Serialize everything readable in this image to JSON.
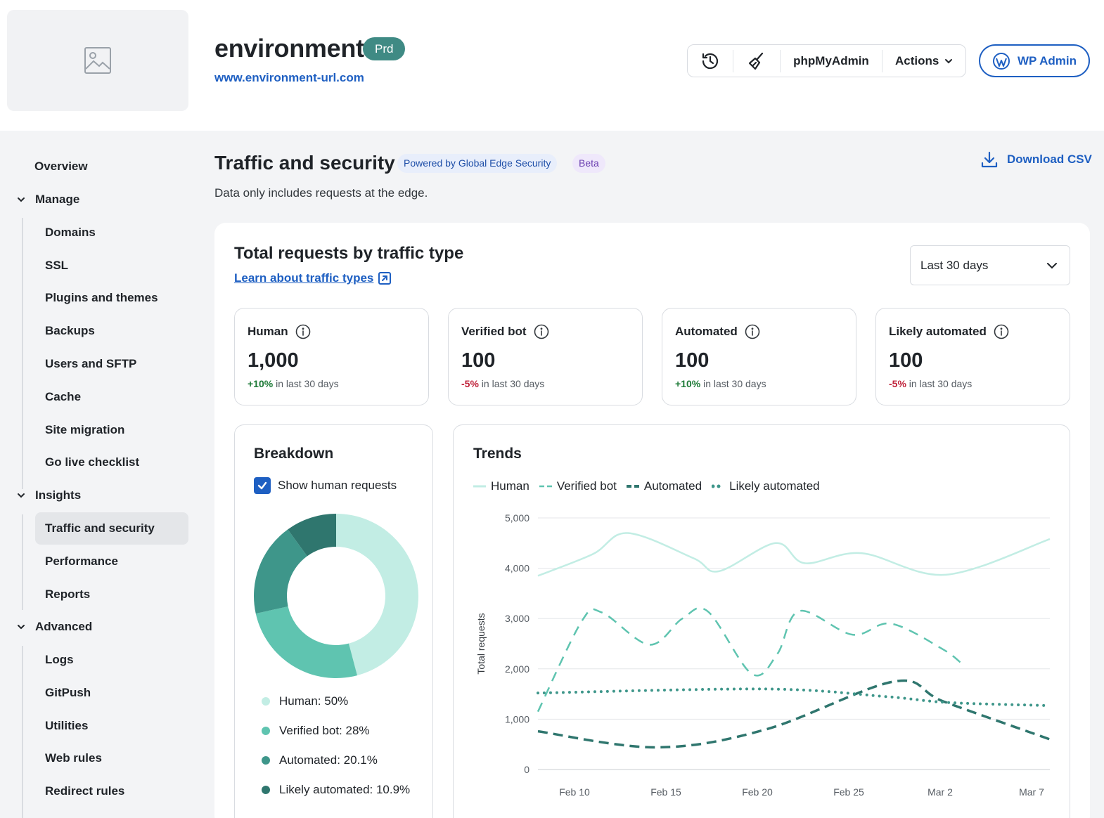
{
  "header": {
    "env_name": "environment",
    "env_badge": "Prd",
    "env_url": "www.environment-url.com",
    "toolbar": {
      "history_icon": "history-icon",
      "clear_cache_icon": "broom-icon",
      "phpmyadmin_label": "phpMyAdmin",
      "actions_label": "Actions"
    },
    "wp_admin_label": "WP Admin"
  },
  "sidebar": {
    "overview": "Overview",
    "groups": [
      {
        "label": "Manage",
        "items": [
          "Domains",
          "SSL",
          "Plugins and themes",
          "Backups",
          "Users and SFTP",
          "Cache",
          "Site migration",
          "Go live checklist"
        ]
      },
      {
        "label": "Insights",
        "items": [
          "Traffic and security",
          "Performance",
          "Reports"
        ]
      },
      {
        "label": "Advanced",
        "items": [
          "Logs",
          "GitPush",
          "Utilities",
          "Web rules",
          "Redirect rules"
        ]
      }
    ],
    "active_item": "Traffic and security"
  },
  "main": {
    "title": "Traffic and security",
    "powered_badge": "Powered by Global Edge Security",
    "beta_badge": "Beta",
    "subtitle": "Data only includes requests at the edge.",
    "download_label": "Download CSV",
    "card_title": "Total requests by traffic type",
    "learn_link": "Learn about traffic types",
    "range_select": "Last 30 days",
    "stats": [
      {
        "label": "Human",
        "value": "1,000",
        "delta": "+10%",
        "delta_dir": "up",
        "delta_suffix": "in last 30 days"
      },
      {
        "label": "Verified bot",
        "value": "100",
        "delta": "-5%",
        "delta_dir": "down",
        "delta_suffix": "in last 30 days"
      },
      {
        "label": "Automated",
        "value": "100",
        "delta": "+10%",
        "delta_dir": "up",
        "delta_suffix": "in last 30 days"
      },
      {
        "label": "Likely automated",
        "value": "100",
        "delta": "-5%",
        "delta_dir": "down",
        "delta_suffix": "in last 30 days"
      }
    ],
    "breakdown": {
      "title": "Breakdown",
      "checkbox_label": "Show human requests",
      "checkbox_checked": true
    },
    "trends": {
      "title": "Trends"
    }
  },
  "colors": {
    "human": "#c2ede4",
    "verified_bot": "#5fc4b0",
    "automated": "#3e968a",
    "likely_automated": "#2f766e",
    "accent": "#1e5fc2"
  },
  "chart_data": [
    {
      "type": "pie",
      "donut": true,
      "labels": [
        "Human: 50%",
        "Verified bot: 28%",
        "Automated: 20.1%",
        "Likely automated: 10.9%"
      ],
      "series_names": [
        "Human",
        "Verified bot",
        "Automated",
        "Likely automated"
      ],
      "values": [
        50,
        28,
        20.1,
        10.9
      ]
    },
    {
      "type": "line",
      "ylabel": "Total requests",
      "ylim": [
        0,
        5000
      ],
      "yticks": [
        "0",
        "1,000",
        "2,000",
        "3,000",
        "4,000",
        "5,000"
      ],
      "xtick_labels": [
        "Feb 10",
        "Feb 15",
        "Feb 20",
        "Feb 25",
        "Mar 2",
        "Mar 7"
      ],
      "xtick_days": [
        10,
        15,
        20,
        25,
        30,
        35
      ],
      "x_days": [
        8,
        11,
        17,
        21,
        26,
        28,
        36
      ],
      "x": [
        "Feb 8",
        "Feb 11",
        "Feb 17",
        "Feb 21",
        "Feb 26",
        "Feb 28",
        "Mar 8"
      ],
      "x_range_days": [
        8,
        36
      ],
      "legend_position": "top-left",
      "grid": true,
      "series": [
        {
          "name": "Human",
          "style": "solid",
          "points": [
            [
              8,
              3850
            ],
            [
              11,
              4280
            ],
            [
              12.9,
              4700
            ],
            [
              16.5,
              4200
            ],
            [
              17.9,
              3940
            ],
            [
              21,
              4500
            ],
            [
              22.6,
              4100
            ],
            [
              25.7,
              4300
            ],
            [
              30.3,
              3870
            ],
            [
              36,
              4580
            ]
          ]
        },
        {
          "name": "Verified bot",
          "style": "dashed",
          "points": [
            [
              8,
              1150
            ],
            [
              10.4,
              2950
            ],
            [
              11.5,
              3120
            ],
            [
              14.1,
              2480
            ],
            [
              15.9,
              3000
            ],
            [
              17.3,
              3140
            ],
            [
              19.7,
              1900
            ],
            [
              21.1,
              2300
            ],
            [
              22.3,
              3150
            ],
            [
              25.2,
              2680
            ],
            [
              27.3,
              2900
            ],
            [
              30.1,
              2400
            ],
            [
              31.2,
              2100
            ]
          ]
        },
        {
          "name": "Automated",
          "style": "dashed-bold",
          "points": [
            [
              8,
              760
            ],
            [
              14.5,
              440
            ],
            [
              20.5,
              800
            ],
            [
              27.5,
              1750
            ],
            [
              30.2,
              1350
            ],
            [
              36,
              600
            ]
          ]
        },
        {
          "name": "Likely automated",
          "style": "dotted",
          "points": [
            [
              8,
              1520
            ],
            [
              20.5,
              1600
            ],
            [
              27,
              1450
            ],
            [
              30.5,
              1330
            ],
            [
              36,
              1270
            ]
          ]
        }
      ]
    }
  ]
}
